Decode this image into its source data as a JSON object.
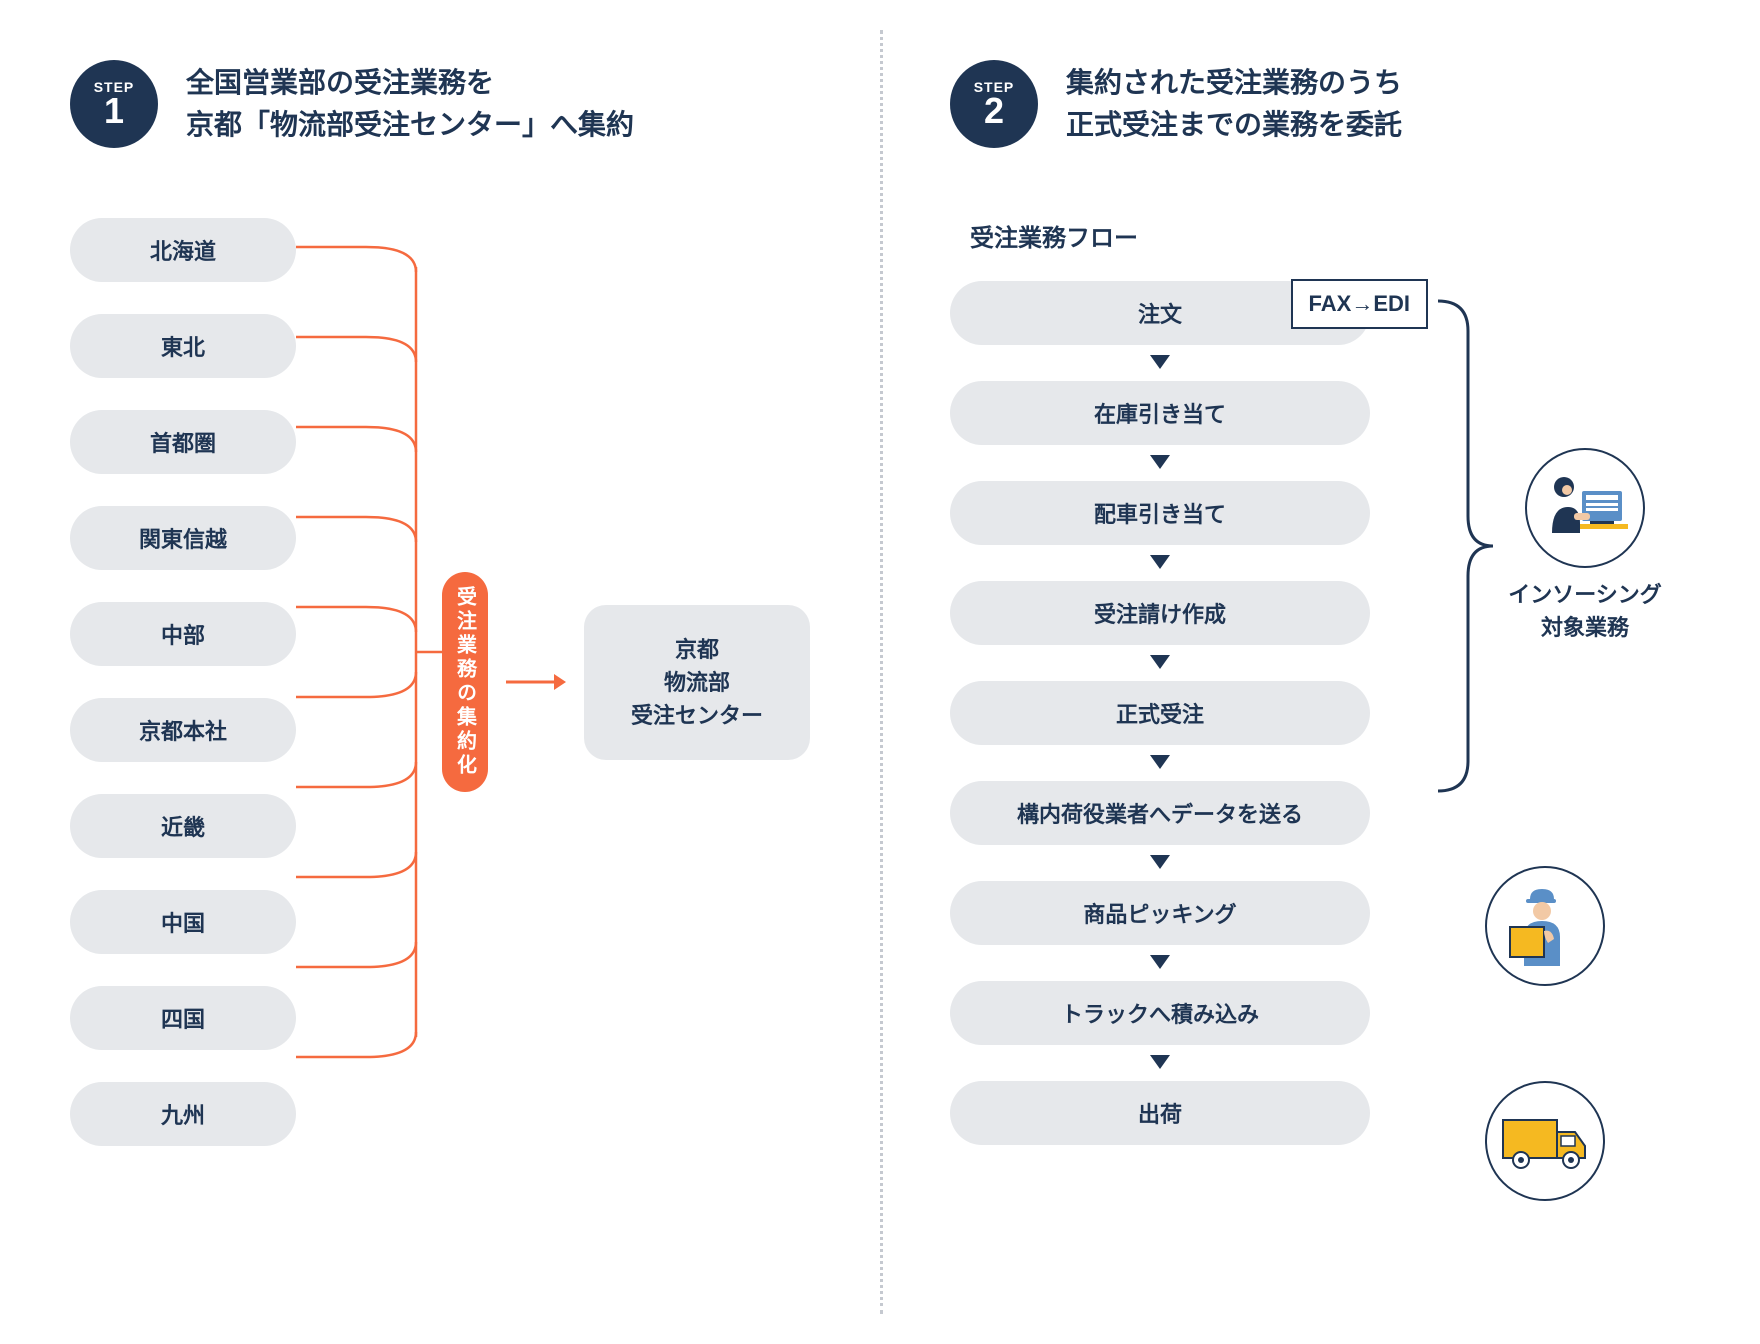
{
  "colors": {
    "navy": "#1f3553",
    "text": "#1f3553",
    "pill_bg": "#e6e8eb",
    "orange": "#f56a3f",
    "line_gray": "#c5c9d0",
    "icon_yellow": "#f5b921",
    "icon_skin": "#f2c9a5",
    "icon_blue": "#5a8fc7"
  },
  "step1": {
    "badge_label": "STEP",
    "badge_num": "1",
    "title_line1": "全国営業部の受注業務を",
    "title_line2": "京都「物流部受注センター」へ集約",
    "regions": [
      "北海道",
      "東北",
      "首都圏",
      "関東信越",
      "中部",
      "京都本社",
      "近畿",
      "中国",
      "四国",
      "九州"
    ],
    "merge_label": "受注業務の集約化",
    "target_line1": "京都",
    "target_line2": "物流部",
    "target_line3": "受注センター"
  },
  "step2": {
    "badge_label": "STEP",
    "badge_num": "2",
    "title_line1": "集約された受注業務のうち",
    "title_line2": "正式受注までの業務を委託",
    "flow_header": "受注業務フロー",
    "callout": "FAX→EDI",
    "steps": [
      "注文",
      "在庫引き当て",
      "配車引き当て",
      "受注請け作成",
      "正式受注",
      "構内荷役業者へデータを送る",
      "商品ピッキング",
      "トラックへ積み込み",
      "出荷"
    ],
    "side_label_line1": "インソーシング",
    "side_label_line2": "対象業務",
    "bracket_count": 5
  },
  "layout": {
    "font_size_pill": 22,
    "font_size_title": 28,
    "region_pill_height": 58,
    "region_gap": 32
  }
}
